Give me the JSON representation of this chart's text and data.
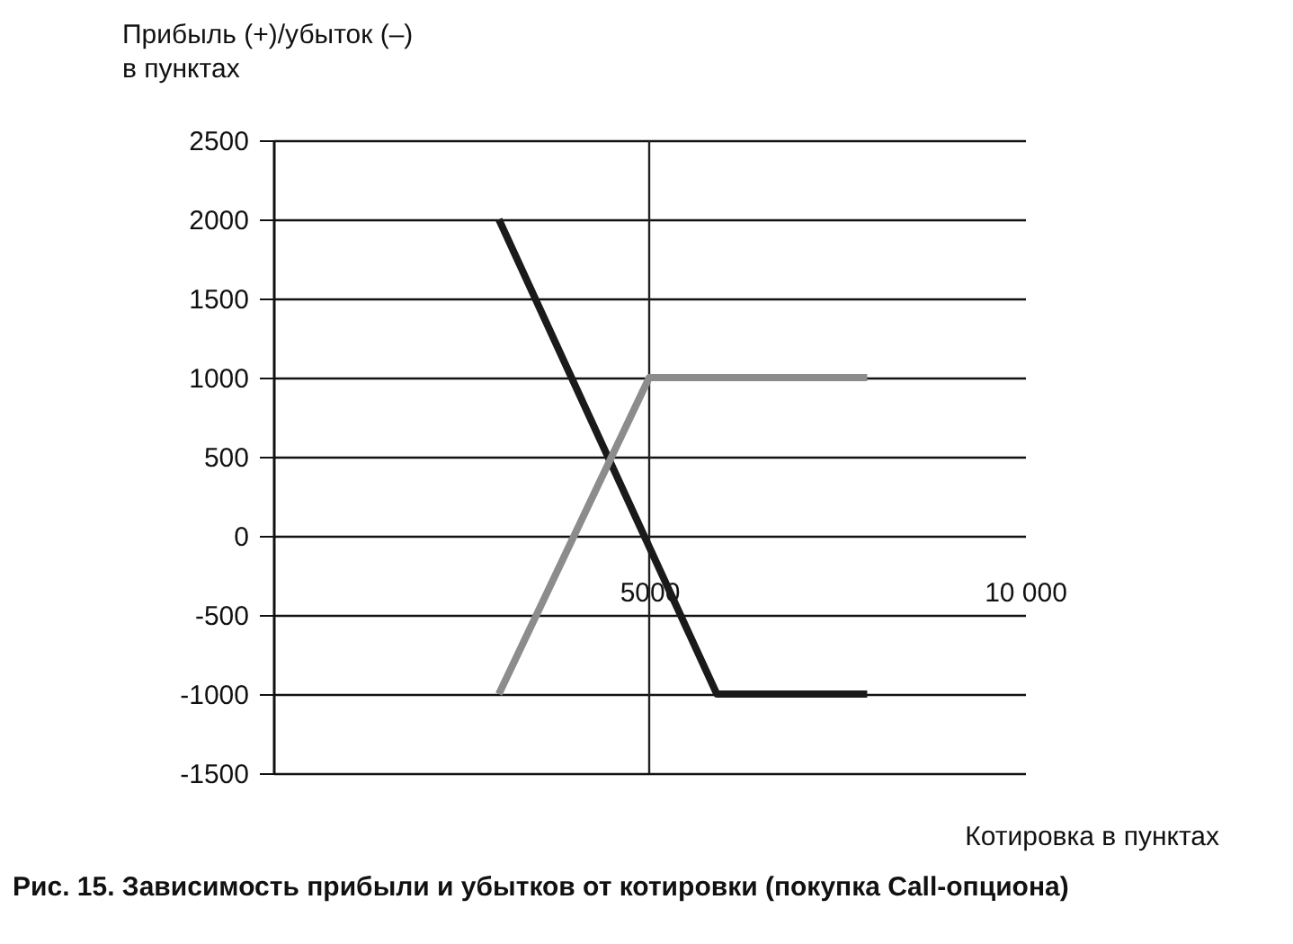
{
  "chart_data": {
    "type": "line",
    "ylabel": "Прибыль (+)/убыток (–)\nв пунктах",
    "xlabel": "Котировка в пунктах",
    "annotations": [
      "Рис. 15. Зависимость прибыли и убытков от котировки (покупка Call-опциона)"
    ],
    "series": [
      {
        "color": "#1a1a1a",
        "x": [
          3000,
          5900,
          7900
        ],
        "values": [
          2000,
          -1000,
          -1000
        ]
      },
      {
        "color": "#8c8c8c",
        "x": [
          3000,
          5000,
          7900
        ],
        "values": [
          -1000,
          1000,
          1000
        ]
      }
    ],
    "xlim": [
      0,
      10000
    ],
    "xticks": [
      {
        "value": 5000,
        "label": "5000"
      },
      {
        "value": 10000,
        "label": "10 000"
      }
    ],
    "ylim": [
      -1500,
      2500
    ],
    "yticks": [
      -1500,
      -1000,
      -500,
      0,
      500,
      1000,
      1500,
      2000,
      2500
    ],
    "ref_lines": [
      {
        "axis": "x",
        "value": 5000,
        "color": "#222222"
      }
    ],
    "grid": "y"
  }
}
